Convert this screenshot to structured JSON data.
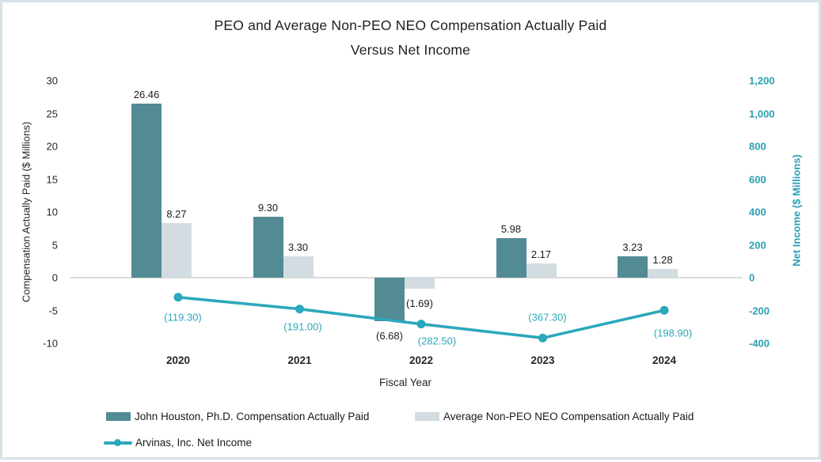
{
  "colors": {
    "frame_border": "#d8e2e9",
    "accent": "#2ca7bb",
    "axis_teal": "#2b9fb4",
    "peo_bar": "#528b94",
    "neo_bar": "#d3dde1",
    "gridline": "#dadada"
  },
  "chart_data": {
    "type": "combo-bar-line",
    "title_lines": [
      "PEO and Average Non-PEO NEO Compensation Actually Paid",
      "Versus Net Income"
    ],
    "xlabel": "Fiscal Year",
    "categories": [
      "2020",
      "2021",
      "2022",
      "2023",
      "2024"
    ],
    "left_axis": {
      "label": "Compensation Actually Paid ($ Millions)",
      "min": -10,
      "max": 30,
      "tick_step": 5,
      "ticks": [
        "30",
        "25",
        "20",
        "15",
        "10",
        "5",
        "0",
        "-5",
        "-10"
      ]
    },
    "right_axis": {
      "label": "Net Income ($ Millions)",
      "min": -400,
      "max": 1200,
      "tick_step": 200,
      "ticks": [
        "1,200",
        "1,000",
        "800",
        "600",
        "400",
        "200",
        "0",
        "-200",
        "-400"
      ]
    },
    "grid": "zero-line-only",
    "legend_position": "bottom-left",
    "series": [
      {
        "name": "John Houston, Ph.D. Compensation Actually Paid",
        "type": "bar",
        "axis": "left",
        "color": "#528b94",
        "values": [
          26.46,
          9.3,
          -6.68,
          5.98,
          3.23
        ],
        "labels": [
          "26.46",
          "9.30",
          "(6.68)",
          "5.98",
          "3.23"
        ]
      },
      {
        "name": "Average Non-PEO NEO Compensation Actually Paid",
        "type": "bar",
        "axis": "left",
        "color": "#d3dde1",
        "values": [
          8.27,
          3.3,
          -1.69,
          2.17,
          1.28
        ],
        "labels": [
          "8.27",
          "3.30",
          "(1.69)",
          "2.17",
          "1.28"
        ]
      },
      {
        "name": "Arvinas, Inc. Net Income",
        "type": "line",
        "axis": "right",
        "color": "#2ca7bb",
        "values": [
          -119.3,
          -191.0,
          -282.5,
          -367.3,
          -198.9
        ],
        "labels": [
          "(119.30)",
          "(191.00)",
          "(282.50)",
          "(367.30)",
          "(198.90)"
        ]
      }
    ]
  }
}
